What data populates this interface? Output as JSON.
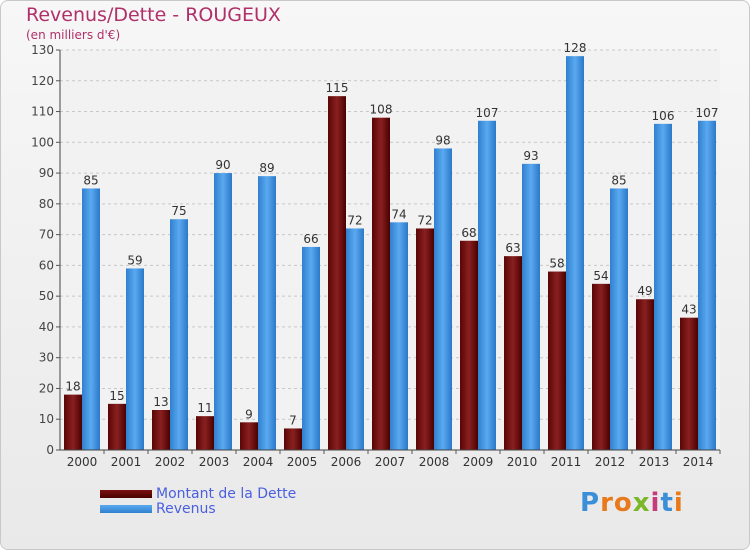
{
  "chart_data": {
    "type": "bar",
    "title": "Revenus/Dette - ROUGEUX",
    "subtitle": "(en milliers d'€)",
    "categories": [
      "2000",
      "2001",
      "2002",
      "2003",
      "2004",
      "2005",
      "2006",
      "2007",
      "2008",
      "2009",
      "2010",
      "2011",
      "2012",
      "2013",
      "2014"
    ],
    "series": [
      {
        "name": "Montant de la Dette",
        "color": "#7a1010",
        "values": [
          18,
          15,
          13,
          11,
          9,
          7,
          115,
          108,
          72,
          68,
          63,
          58,
          54,
          49,
          43
        ]
      },
      {
        "name": "Revenus",
        "color": "#4a9ee8",
        "values": [
          85,
          59,
          75,
          90,
          89,
          66,
          72,
          74,
          98,
          107,
          93,
          128,
          85,
          106,
          107
        ]
      }
    ],
    "ylim": [
      0,
      130
    ],
    "yticks": [
      0,
      10,
      20,
      30,
      40,
      50,
      60,
      70,
      80,
      90,
      100,
      110,
      120,
      130
    ],
    "grid": true,
    "legend_position": "bottom-left"
  },
  "logo": {
    "text": "Proxiti",
    "letters": [
      "P",
      "r",
      "o",
      "x",
      "i",
      "t",
      "i"
    ]
  }
}
